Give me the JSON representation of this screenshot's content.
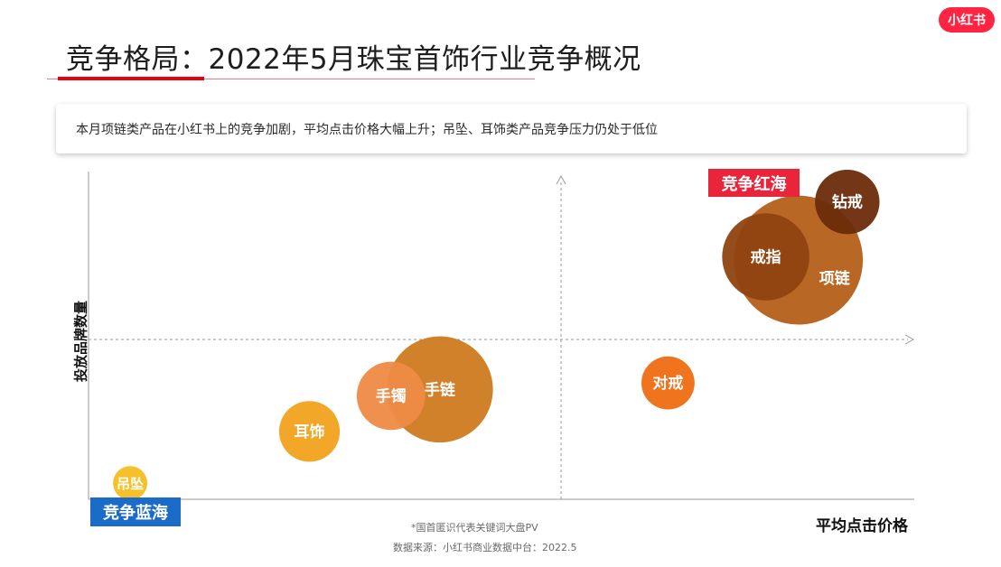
{
  "brand": {
    "logo_text": "小红书"
  },
  "header": {
    "title": "竞争格局：2022年5月珠宝首饰行业竞争概况"
  },
  "summary": {
    "text": "本月项链类产品在小红书上的竞争加剧，平均点击价格大幅上升；吊坠、耳饰类产品竞争压力仍处于低位"
  },
  "badges": {
    "red_ocean": "竞争红海",
    "blue_ocean": "竞争蓝海"
  },
  "footer": {
    "note": "*国首匿识代表关键词大盘PV",
    "source": "数据来源：小红书商业数据中台：2022.5"
  },
  "colors": {
    "accent_red": "#e60012",
    "badge_red": "#e8253a",
    "badge_blue": "#1b6cc8",
    "axis": "#9a9a9a"
  },
  "chart_data": {
    "type": "scatter",
    "xlabel": "平均点击价格",
    "ylabel": "投放品牌数量",
    "xlim": [
      0,
      10
    ],
    "ylim": [
      0,
      10
    ],
    "quadrant_center": [
      5,
      5
    ],
    "grid": false,
    "points": [
      {
        "label": "吊坠",
        "x": 0.4,
        "y": 0.5,
        "size": 0.9,
        "color": "#f5bd1f"
      },
      {
        "label": "耳饰",
        "x": 2.6,
        "y": 2.1,
        "size": 1.6,
        "color": "#f2a21c"
      },
      {
        "label": "手镯",
        "x": 3.6,
        "y": 3.2,
        "size": 1.8,
        "color": "#ee8a44"
      },
      {
        "label": "手链",
        "x": 4.2,
        "y": 3.4,
        "size": 2.8,
        "color": "#cf7a1e"
      },
      {
        "label": "对戒",
        "x": 7.0,
        "y": 3.6,
        "size": 1.4,
        "color": "#ef6b12"
      },
      {
        "label": "项链",
        "x": 8.6,
        "y": 7.4,
        "size": 3.4,
        "color": "#b46018"
      },
      {
        "label": "戒指",
        "x": 8.2,
        "y": 7.5,
        "size": 2.3,
        "color": "#8f4310"
      },
      {
        "label": "钻戒",
        "x": 9.2,
        "y": 9.2,
        "size": 1.7,
        "color": "#6b2c0b"
      }
    ]
  }
}
